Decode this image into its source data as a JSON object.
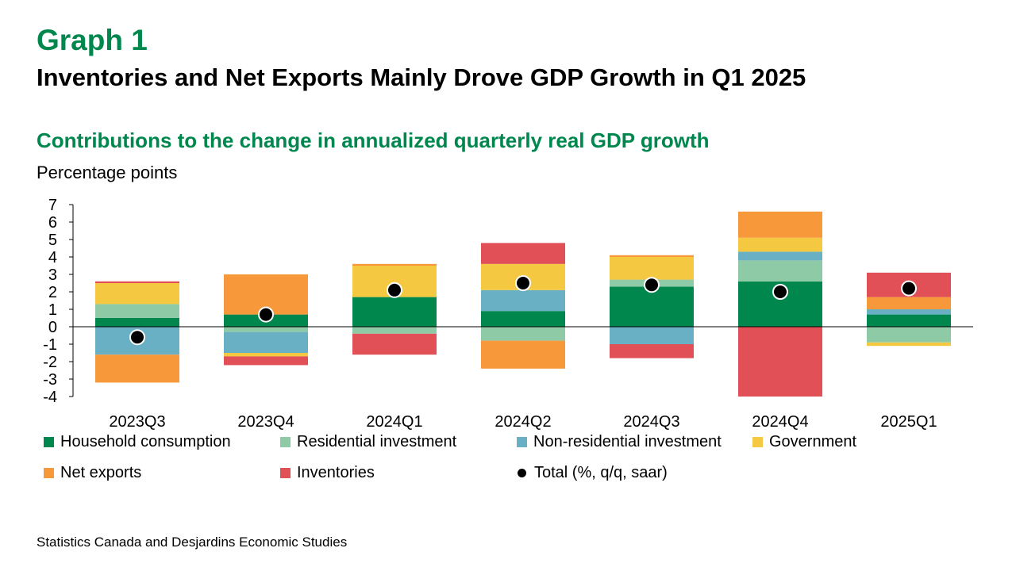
{
  "header": {
    "graph_label": "Graph 1",
    "title": "Inventories and Net Exports Mainly Drove GDP Growth in Q1 2025"
  },
  "chart_data": {
    "type": "bar",
    "stacked": true,
    "title": "Contributions to the change in annualized quarterly real GDP growth",
    "ylabel": "Percentage points",
    "xlabel": "",
    "ylim": [
      -4,
      7
    ],
    "yticks": [
      7,
      6,
      5,
      4,
      3,
      2,
      1,
      0,
      -1,
      -2,
      -3,
      -4
    ],
    "grid": false,
    "legend_position": "bottom",
    "categories": [
      "2023Q3",
      "2023Q4",
      "2024Q1",
      "2024Q2",
      "2024Q3",
      "2024Q4",
      "2025Q1"
    ],
    "series": [
      {
        "name": "Household consumption",
        "color": "#00874e",
        "values": [
          0.5,
          0.7,
          1.7,
          0.9,
          2.3,
          2.6,
          0.7
        ]
      },
      {
        "name": "Residential investment",
        "color": "#8fcaa7",
        "values": [
          0.8,
          -0.3,
          -0.4,
          -0.8,
          0.4,
          1.2,
          -0.9
        ]
      },
      {
        "name": "Non-residential investment",
        "color": "#6ab0c4",
        "values": [
          -1.6,
          -1.2,
          0.0,
          1.2,
          -1.0,
          0.5,
          0.3
        ]
      },
      {
        "name": "Government",
        "color": "#f5c842",
        "values": [
          1.2,
          -0.2,
          1.8,
          1.5,
          1.3,
          0.8,
          -0.2
        ]
      },
      {
        "name": "Net exports",
        "color": "#f7993b",
        "values": [
          -1.6,
          2.3,
          0.1,
          -1.6,
          0.1,
          1.5,
          0.7
        ]
      },
      {
        "name": "Inventories",
        "color": "#e05056",
        "values": [
          0.1,
          -0.5,
          -1.2,
          1.2,
          -0.8,
          -4.0,
          1.4
        ]
      }
    ],
    "total": {
      "name": "Total (%, q/q, saar)",
      "color": "#000000",
      "values": [
        -0.6,
        0.7,
        2.1,
        2.5,
        2.4,
        2.0,
        2.2
      ]
    }
  },
  "source": "Statistics Canada and Desjardins Economic Studies"
}
